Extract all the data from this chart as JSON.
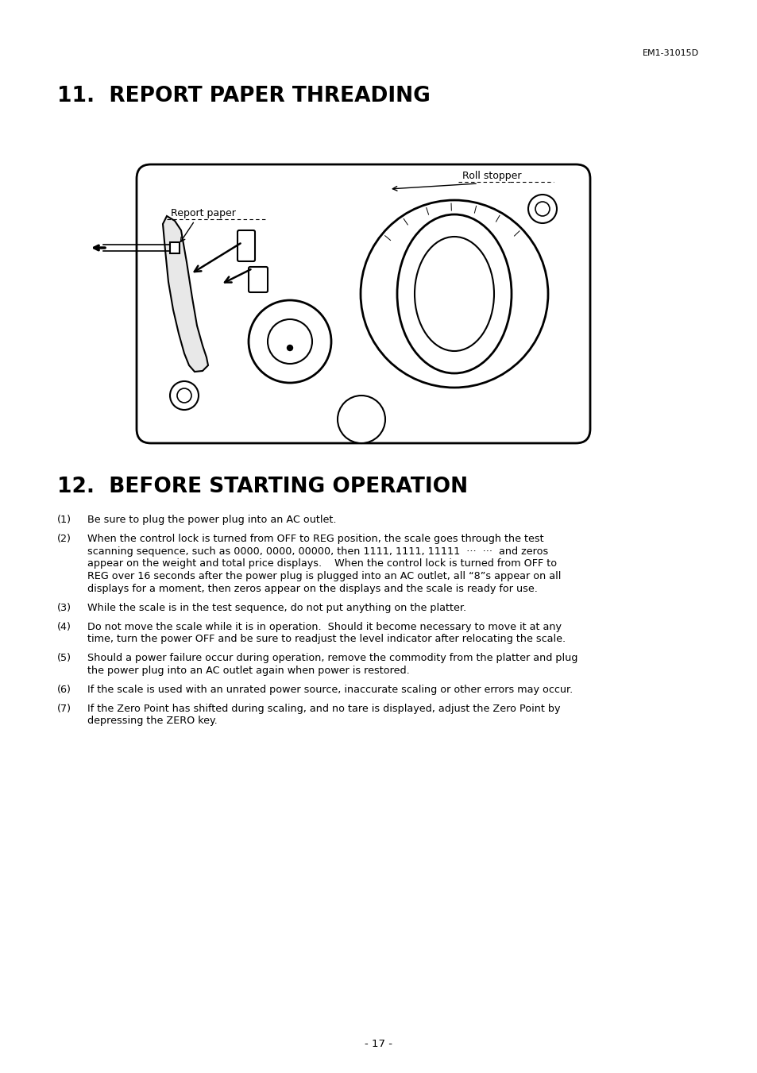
{
  "header_text": "EM1-31015D",
  "section11_title": "11.  REPORT PAPER THREADING",
  "section12_title": "12.  BEFORE STARTING OPERATION",
  "label_roll_stopper": "Roll stopper",
  "label_report_paper": "Report paper",
  "items": [
    [
      "(1)",
      "Be sure to plug the power plug into an AC outlet."
    ],
    [
      "(2)",
      "When the control lock is turned from OFF to REG position, the scale goes through the test\nscanning sequence, such as 0000, 0000, 00000, then 1111, 1111, 11111  ···  ···  and zeros\nappear on the weight and total price displays.    When the control lock is turned from OFF to\nREG over 16 seconds after the power plug is plugged into an AC outlet, all “8”s appear on all\ndisplays for a moment, then zeros appear on the displays and the scale is ready for use."
    ],
    [
      "(3)",
      "While the scale is in the test sequence, do not put anything on the platter."
    ],
    [
      "(4)",
      "Do not move the scale while it is in operation.  Should it become necessary to move it at any\ntime, turn the power OFF and be sure to readjust the level indicator after relocating the scale."
    ],
    [
      "(5)",
      "Should a power failure occur during operation, remove the commodity from the platter and plug\nthe power plug into an AC outlet again when power is restored."
    ],
    [
      "(6)",
      "If the scale is used with an unrated power source, inaccurate scaling or other errors may occur."
    ],
    [
      "(7)",
      "If the Zero Point has shifted during scaling, and no tare is displayed, adjust the Zero Point by\ndepressing the ZERO key."
    ]
  ],
  "page_number": "- 17 -",
  "bg_color": "#ffffff",
  "text_color": "#000000"
}
